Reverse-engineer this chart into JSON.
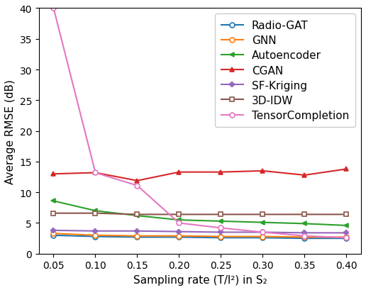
{
  "x": [
    0.05,
    0.1,
    0.15,
    0.2,
    0.25,
    0.3,
    0.35,
    0.4
  ],
  "Radio_GAT": [
    3.0,
    2.8,
    2.7,
    2.7,
    2.6,
    2.6,
    2.5,
    2.5
  ],
  "GNN": [
    3.3,
    3.0,
    2.9,
    2.9,
    2.8,
    2.8,
    2.7,
    2.7
  ],
  "Autoencoder": [
    8.6,
    7.0,
    6.2,
    5.5,
    5.3,
    5.1,
    4.9,
    4.6
  ],
  "CGAN": [
    13.0,
    13.2,
    11.9,
    13.3,
    13.3,
    13.5,
    12.8,
    13.8
  ],
  "SF_Kriging": [
    3.8,
    3.7,
    3.7,
    3.6,
    3.5,
    3.5,
    3.4,
    3.4
  ],
  "IDW3D": [
    6.6,
    6.6,
    6.4,
    6.4,
    6.4,
    6.4,
    6.4,
    6.4
  ],
  "TensorCompletion": [
    40.0,
    13.2,
    11.1,
    5.0,
    4.2,
    3.5,
    2.9,
    2.6
  ],
  "colors": {
    "Radio_GAT": "#1f77b4",
    "GNN": "#ff7f0e",
    "Autoencoder": "#2ca02c",
    "CGAN": "#d62728",
    "SF_Kriging": "#9467bd",
    "IDW3D": "#8c564b",
    "TensorCompletion": "#e377c2"
  },
  "markers": {
    "Radio_GAT": "o",
    "GNN": "o",
    "Autoencoder": "<",
    "CGAN": "^",
    "SF_Kriging": "P",
    "IDW3D": "s",
    "TensorCompletion": "o"
  },
  "markerfilled": {
    "Radio_GAT": false,
    "GNN": false,
    "Autoencoder": true,
    "CGAN": true,
    "SF_Kriging": true,
    "IDW3D": false,
    "TensorCompletion": false
  },
  "labels": {
    "Radio_GAT": "Radio-GAT",
    "GNN": "GNN",
    "Autoencoder": "Autoencoder",
    "CGAN": "CGAN",
    "SF_Kriging": "SF-Kriging",
    "IDW3D": "3D-IDW",
    "TensorCompletion": "TensorCompletion"
  },
  "xlabel": "Sampling rate (T/l²) in S₂",
  "ylabel": "Average RMSE (dB)",
  "ylim": [
    0,
    40
  ],
  "yticks": [
    0,
    5,
    10,
    15,
    20,
    25,
    30,
    35,
    40
  ],
  "xticks": [
    0.05,
    0.1,
    0.15,
    0.2,
    0.25,
    0.3,
    0.35,
    0.4
  ],
  "axis_fontsize": 11,
  "tick_fontsize": 10,
  "legend_fontsize": 11
}
